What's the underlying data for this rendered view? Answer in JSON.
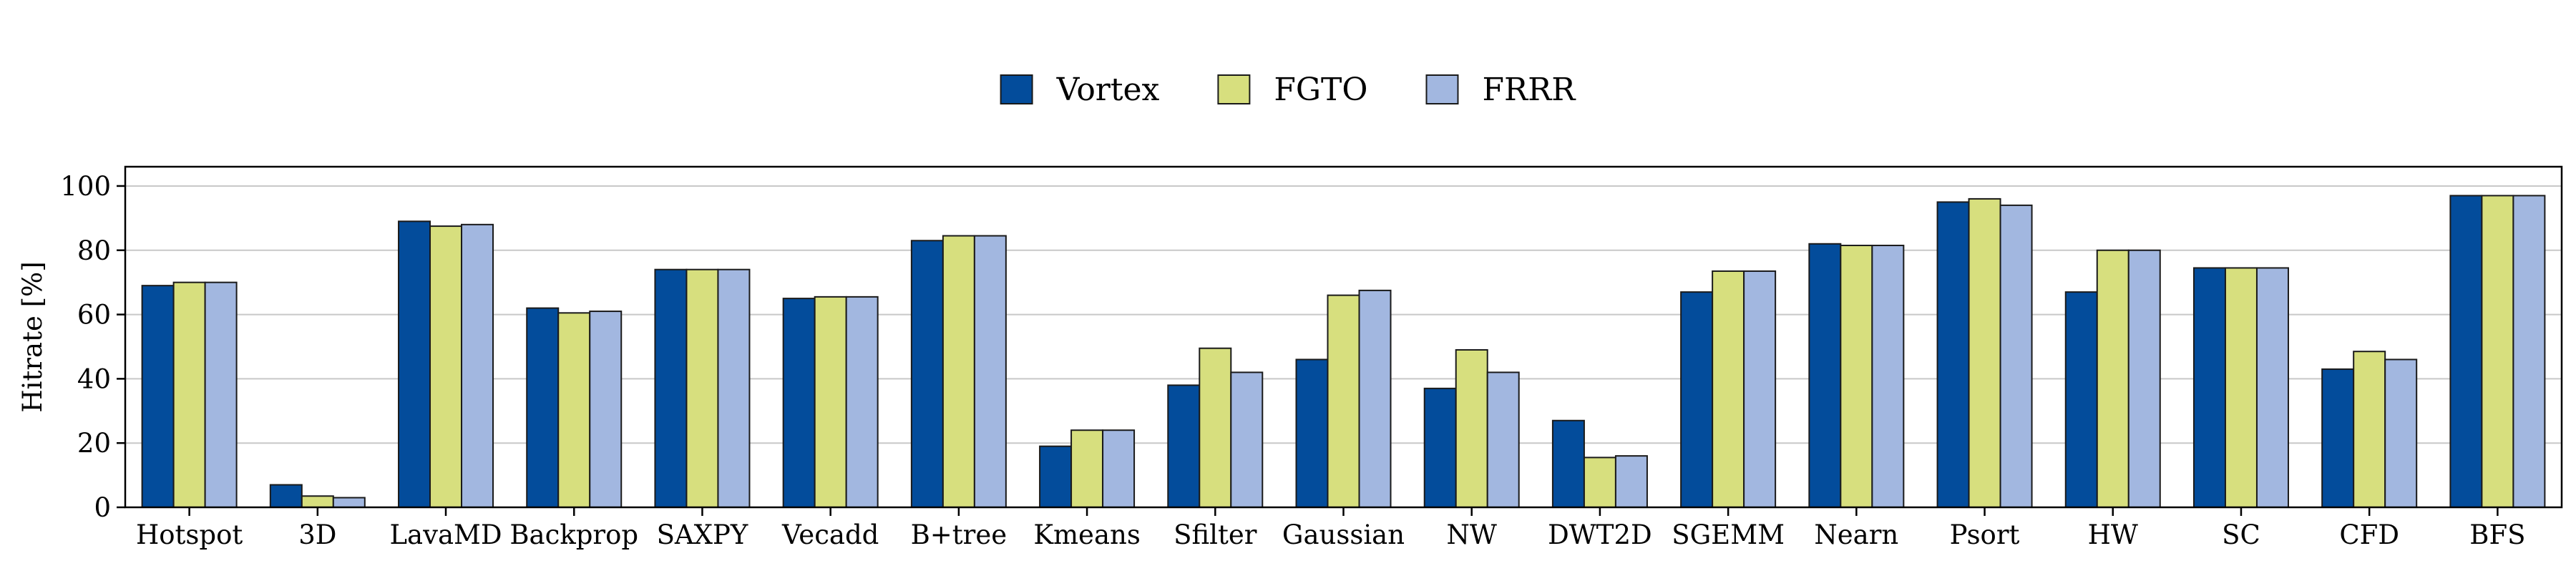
{
  "chart_data": {
    "type": "bar",
    "ylabel": "Hitrate [%]",
    "xlabel": "",
    "ylim": [
      0,
      106
    ],
    "yticks": [
      0,
      20,
      40,
      60,
      80,
      100
    ],
    "grid": "horizontal",
    "legend_position": "top-center",
    "categories": [
      "Hotspot",
      "3D",
      "LavaMD",
      "Backprop",
      "SAXPY",
      "Vecadd",
      "B+tree",
      "Kmeans",
      "Sfilter",
      "Gaussian",
      "NW",
      "DWT2D",
      "SGEMM",
      "Nearn",
      "Psort",
      "HW",
      "SC",
      "CFD",
      "BFS"
    ],
    "series": [
      {
        "name": "Vortex",
        "color": "#034c9b",
        "values": [
          69,
          7,
          89,
          62,
          74,
          65,
          83,
          19,
          38,
          46,
          37,
          27,
          67,
          82,
          95,
          67,
          74.5,
          43,
          97
        ]
      },
      {
        "name": "FGTO",
        "color": "#d7df7e",
        "values": [
          70,
          3.5,
          87.5,
          60.5,
          74,
          65.5,
          84.5,
          24,
          49.5,
          66,
          49,
          15.5,
          73.5,
          81.5,
          96,
          80,
          74.5,
          48.5,
          97
        ]
      },
      {
        "name": "FRRR",
        "color": "#a2b7e0",
        "values": [
          70,
          3,
          88,
          61,
          74,
          65.5,
          84.5,
          24,
          42,
          67.5,
          42,
          16,
          73.5,
          81.5,
          94,
          80,
          74.5,
          46,
          97
        ]
      }
    ]
  }
}
